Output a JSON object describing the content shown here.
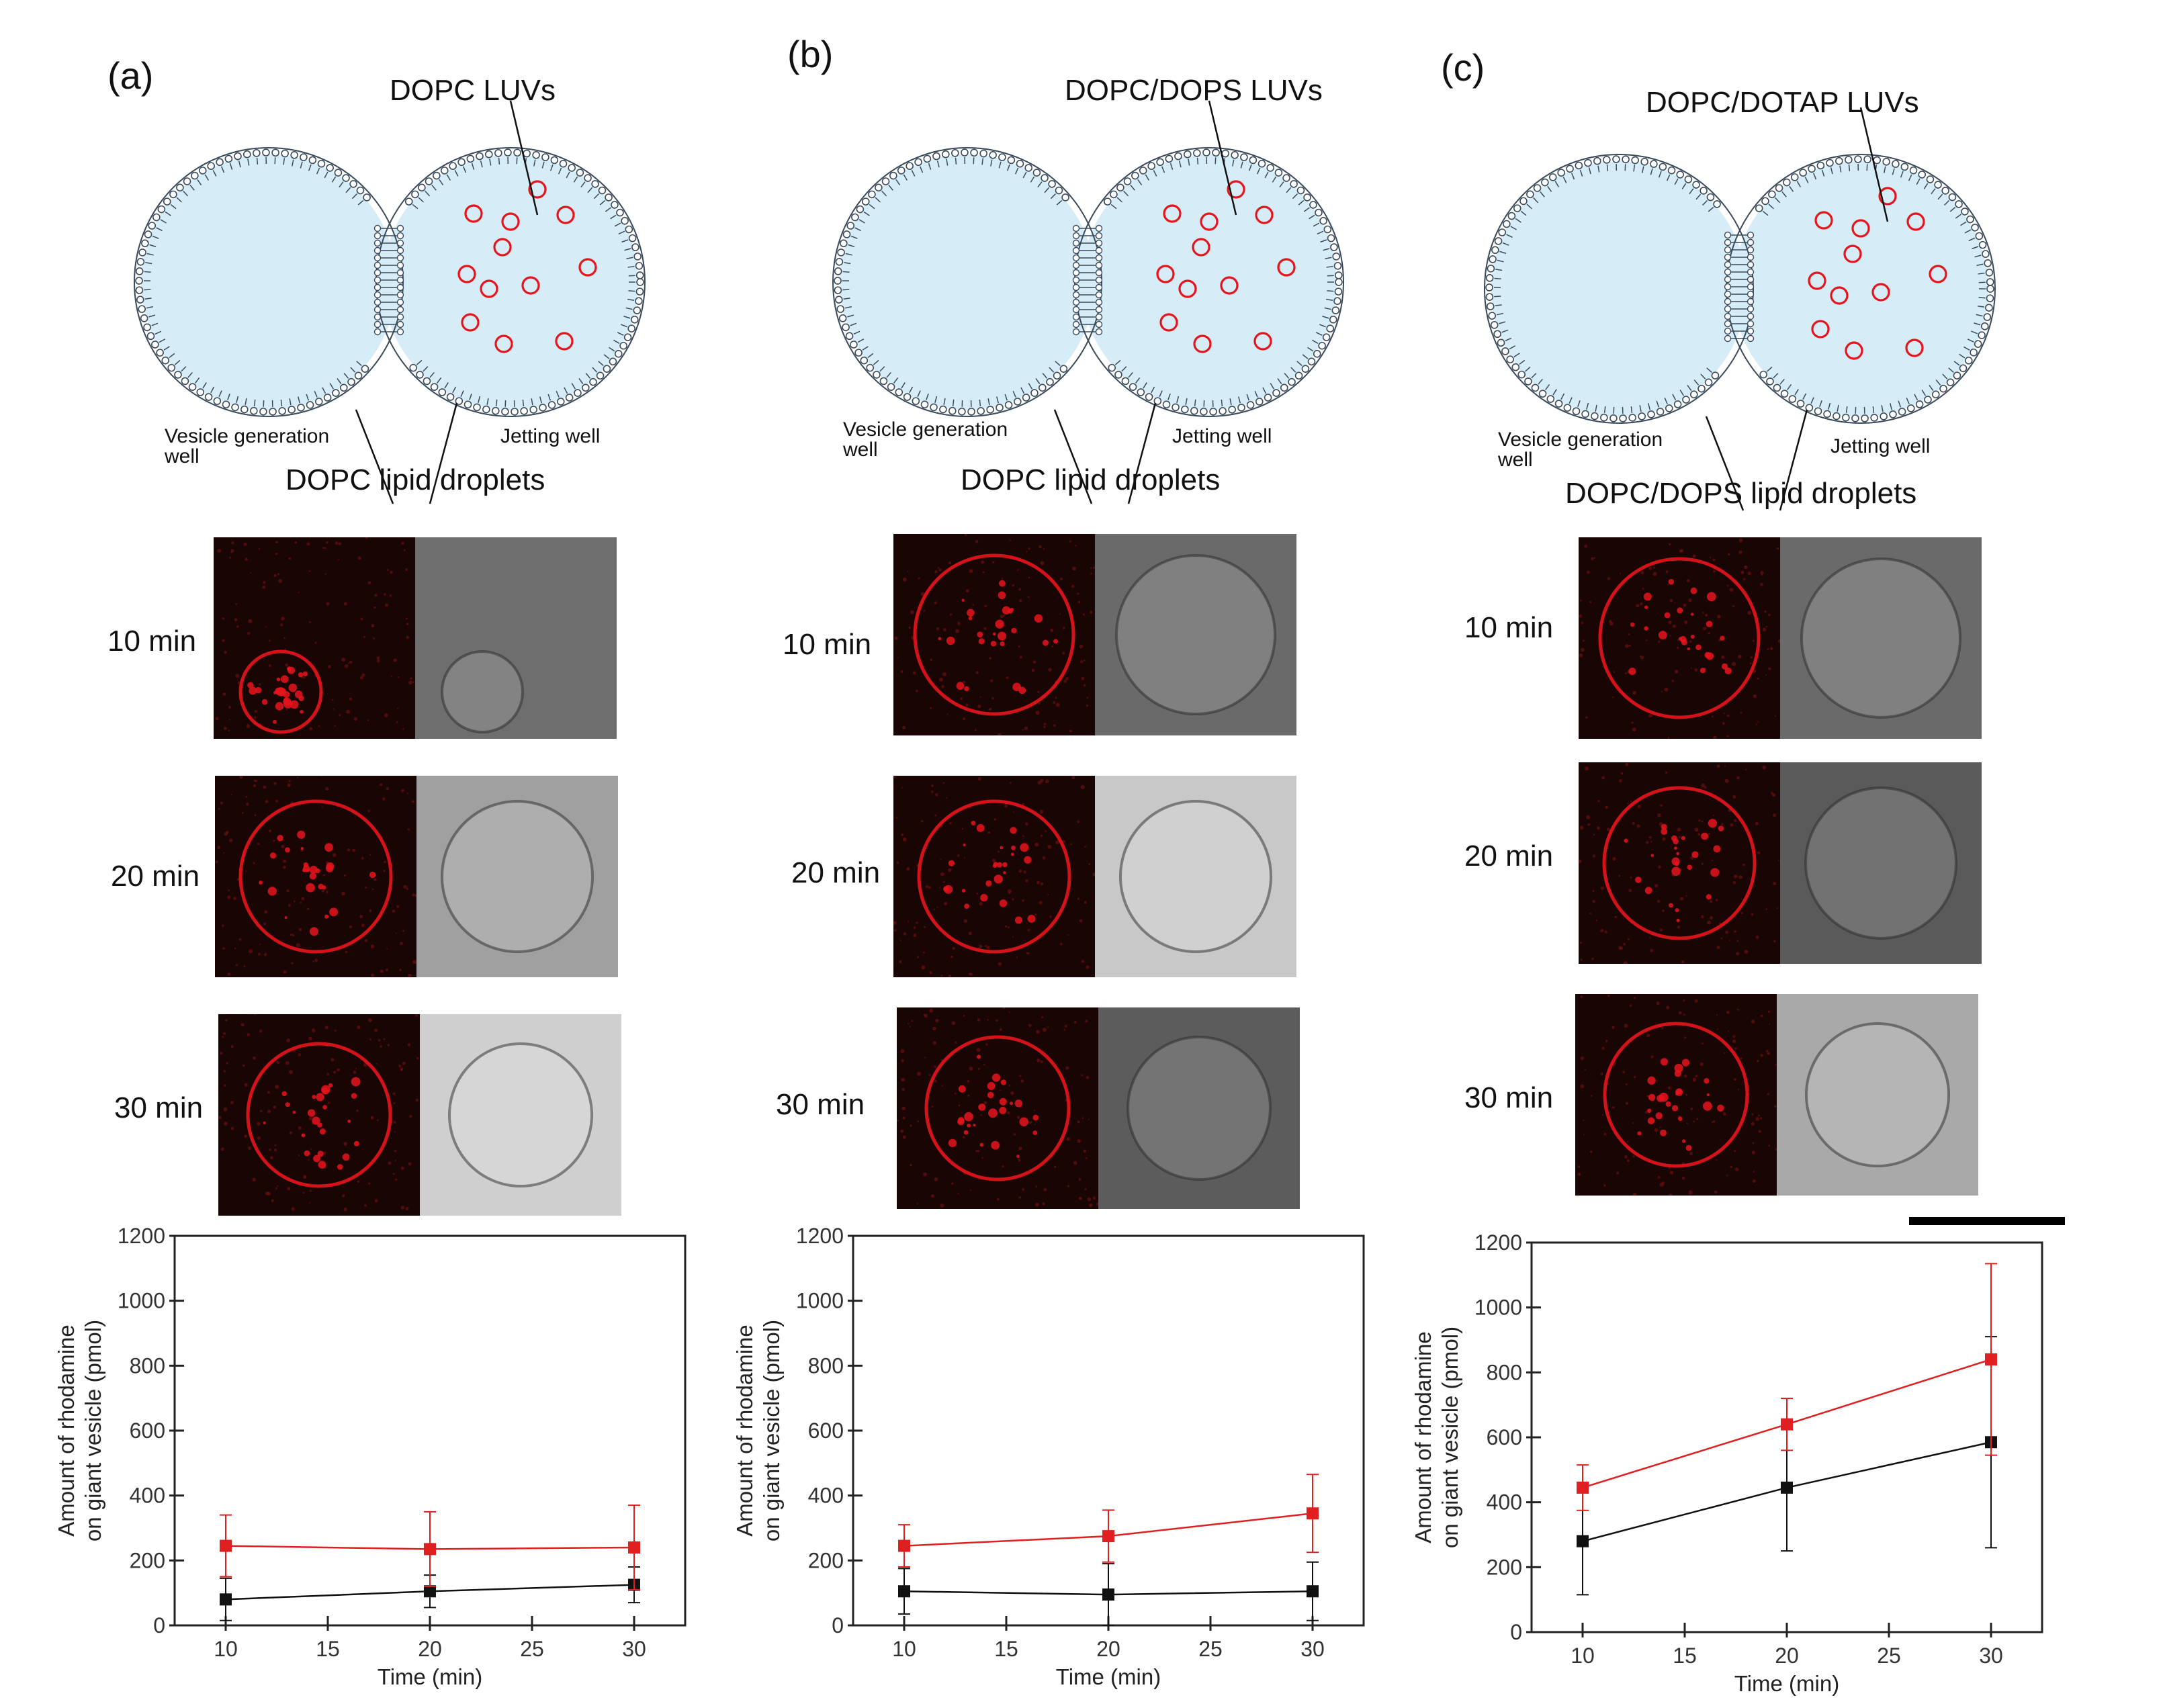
{
  "figure": {
    "panels": [
      {
        "label": "(a)",
        "luv_label": "DOPC LUVs",
        "left_well": "Vesicle generation\nwell",
        "right_well": "Jetting well",
        "droplet_label": "DOPC lipid droplets",
        "times": [
          "10 min",
          "20 min",
          "30 min"
        ]
      },
      {
        "label": "(b)",
        "luv_label": "DOPC/DOPS LUVs",
        "left_well": "Vesicle generation\nwell",
        "right_well": "Jetting well",
        "droplet_label": "DOPC lipid droplets",
        "times": [
          "10 min",
          "20 min",
          "30 min"
        ]
      },
      {
        "label": "(c)",
        "luv_label": "DOPC/DOTAP LUVs",
        "left_well": "Vesicle generation\nwell",
        "right_well": "Jetting well",
        "droplet_label": "DOPC/DOPS lipid droplets",
        "times": [
          "10 min",
          "20 min",
          "30 min"
        ]
      }
    ],
    "colors": {
      "fluorescence": "#e8141c",
      "well_fill": "#d6ecf7",
      "membrane": "#3a4a5a",
      "black_series": "#111111",
      "red_series": "#e02020"
    }
  },
  "chart_data": [
    {
      "type": "line",
      "xlabel": "Time (min)",
      "ylabel": "Amount of rhodamine\non giant vesicle (pmol)",
      "x": [
        10,
        20,
        30
      ],
      "xlim": [
        7.5,
        32.5
      ],
      "ylim": [
        0,
        1200
      ],
      "xticks": [
        10,
        15,
        20,
        25,
        30
      ],
      "yticks": [
        0,
        200,
        400,
        600,
        800,
        1000,
        1200
      ],
      "series": [
        {
          "name": "black",
          "color": "#111111",
          "values": [
            80,
            105,
            125
          ],
          "errors": [
            65,
            50,
            55
          ]
        },
        {
          "name": "red",
          "color": "#e02020",
          "values": [
            245,
            235,
            240
          ],
          "errors": [
            95,
            115,
            130
          ]
        }
      ]
    },
    {
      "type": "line",
      "xlabel": "Time (min)",
      "ylabel": "Amount of rhodamine\non giant vesicle (pmol)",
      "x": [
        10,
        20,
        30
      ],
      "xlim": [
        7.5,
        32.5
      ],
      "ylim": [
        0,
        1200
      ],
      "xticks": [
        10,
        15,
        20,
        25,
        30
      ],
      "yticks": [
        0,
        200,
        400,
        600,
        800,
        1000,
        1200
      ],
      "series": [
        {
          "name": "black",
          "color": "#111111",
          "values": [
            105,
            95,
            105
          ],
          "errors": [
            70,
            95,
            90
          ]
        },
        {
          "name": "red",
          "color": "#e02020",
          "values": [
            245,
            275,
            345
          ],
          "errors": [
            65,
            80,
            120
          ]
        }
      ]
    },
    {
      "type": "line",
      "xlabel": "Time (min)",
      "ylabel": "Amount of rhodamine\non giant vesicle (pmol)",
      "x": [
        10,
        20,
        30
      ],
      "xlim": [
        7.5,
        32.5
      ],
      "ylim": [
        0,
        1200
      ],
      "xticks": [
        10,
        15,
        20,
        25,
        30
      ],
      "yticks": [
        0,
        200,
        400,
        600,
        800,
        1000,
        1200
      ],
      "series": [
        {
          "name": "black",
          "color": "#111111",
          "values": [
            280,
            445,
            585
          ],
          "errors": [
            165,
            195,
            325
          ]
        },
        {
          "name": "red",
          "color": "#e02020",
          "values": [
            445,
            640,
            840
          ],
          "errors": [
            70,
            80,
            295
          ]
        }
      ]
    }
  ]
}
